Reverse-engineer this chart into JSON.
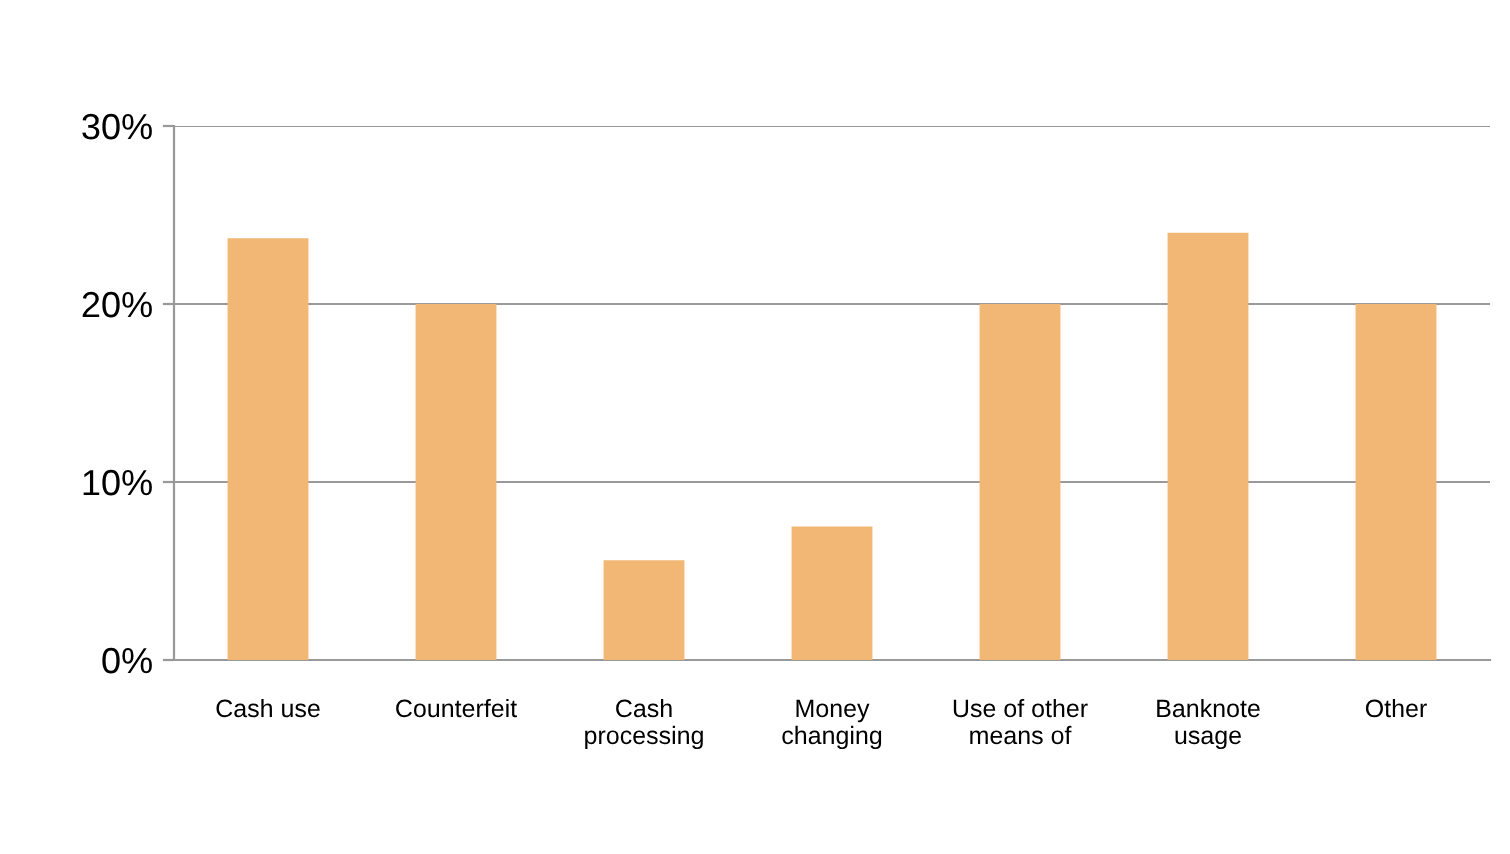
{
  "chart_data": {
    "type": "bar",
    "categories": [
      "Cash use",
      "Counterfeit",
      "Cash\nprocessing",
      "Money\nchanging",
      "Use of other\nmeans of",
      "Banknote\nusage",
      "Other"
    ],
    "values": [
      23.7,
      20,
      5.6,
      7.5,
      20,
      24,
      20
    ],
    "color": "#f2b775",
    "ylim": [
      0,
      30
    ],
    "yticks": [
      {
        "value": 0,
        "label": "0%"
      },
      {
        "value": 10,
        "label": "10%"
      },
      {
        "value": 20,
        "label": "20%"
      },
      {
        "value": 30,
        "label": "30%"
      }
    ],
    "grid": "y"
  }
}
